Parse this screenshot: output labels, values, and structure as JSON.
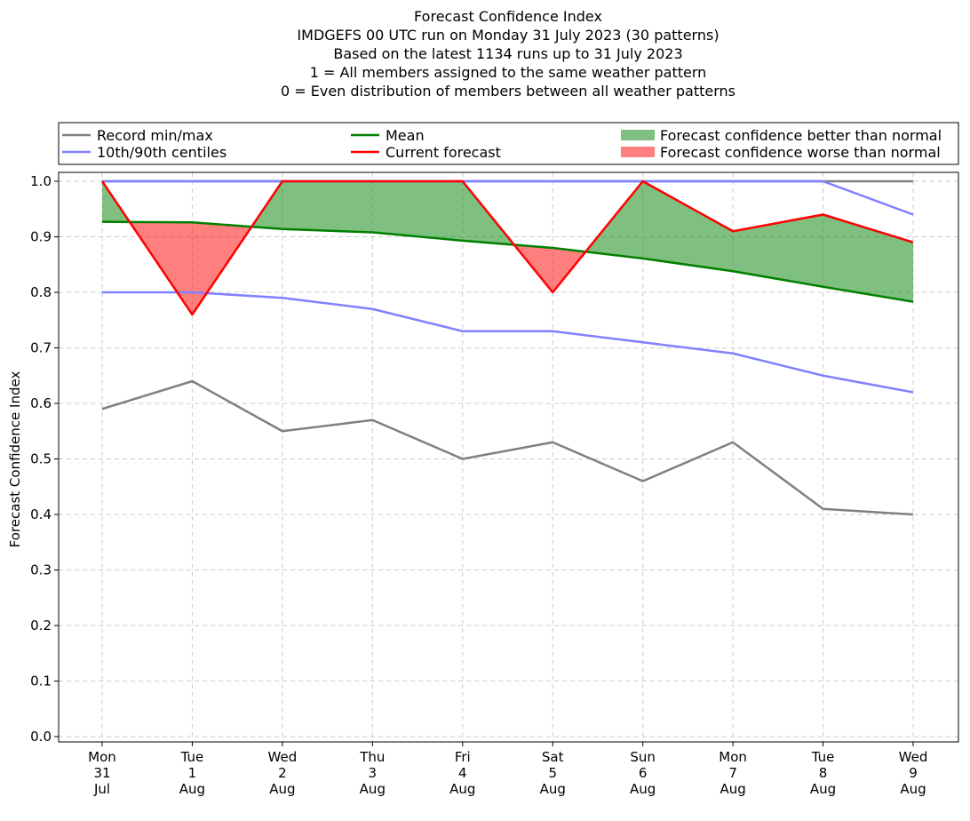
{
  "chart_data": {
    "type": "line",
    "title_lines": [
      "Forecast Confidence Index",
      "IMDGEFS 00 UTC run on Monday 31 July 2023 (30 patterns)",
      "Based on the latest 1134 runs up to 31 July 2023",
      "1 = All members assigned to the same weather pattern",
      "0 = Even distribution of members between all weather patterns"
    ],
    "ylabel": "Forecast Confidence Index",
    "ylim": [
      0.0,
      1.0
    ],
    "yticks": [
      "0.0",
      "0.1",
      "0.2",
      "0.3",
      "0.4",
      "0.5",
      "0.6",
      "0.7",
      "0.8",
      "0.9",
      "1.0"
    ],
    "grid": true,
    "legend_position": "top, above plot, three columns",
    "categories": [
      [
        "Mon",
        "31",
        "Jul"
      ],
      [
        "Tue",
        "1",
        "Aug"
      ],
      [
        "Wed",
        "2",
        "Aug"
      ],
      [
        "Thu",
        "3",
        "Aug"
      ],
      [
        "Fri",
        "4",
        "Aug"
      ],
      [
        "Sat",
        "5",
        "Aug"
      ],
      [
        "Sun",
        "6",
        "Aug"
      ],
      [
        "Mon",
        "7",
        "Aug"
      ],
      [
        "Tue",
        "8",
        "Aug"
      ],
      [
        "Wed",
        "9",
        "Aug"
      ]
    ],
    "series": [
      {
        "name": "Record max",
        "role": "record_max",
        "color": "#808080",
        "values": [
          1.0,
          1.0,
          1.0,
          1.0,
          1.0,
          1.0,
          1.0,
          1.0,
          1.0,
          1.0
        ]
      },
      {
        "name": "Record min",
        "role": "record_min",
        "color": "#808080",
        "values": [
          0.59,
          0.64,
          0.55,
          0.57,
          0.5,
          0.53,
          0.46,
          0.53,
          0.41,
          0.4
        ]
      },
      {
        "name": "90th centile",
        "role": "p90",
        "color": "#8080ff",
        "values": [
          1.0,
          1.0,
          1.0,
          1.0,
          1.0,
          1.0,
          1.0,
          1.0,
          1.0,
          0.94
        ]
      },
      {
        "name": "10th centile",
        "role": "p10",
        "color": "#8080ff",
        "values": [
          0.8,
          0.8,
          0.79,
          0.77,
          0.73,
          0.73,
          0.71,
          0.69,
          0.65,
          0.62
        ]
      },
      {
        "name": "Mean",
        "role": "mean",
        "color": "#008000",
        "values": [
          0.927,
          0.926,
          0.914,
          0.908,
          0.893,
          0.88,
          0.861,
          0.838,
          0.81,
          0.783
        ]
      },
      {
        "name": "Current forecast",
        "role": "current",
        "color": "#ff0000",
        "values": [
          1.0,
          0.76,
          1.0,
          1.0,
          1.0,
          0.8,
          1.0,
          0.91,
          0.94,
          0.89
        ]
      }
    ],
    "fills": {
      "better": {
        "color": "#008000",
        "opacity": 0.5
      },
      "worse": {
        "color": "#ff0000",
        "opacity": 0.5
      }
    },
    "legend": [
      {
        "label": "Record min/max",
        "kind": "line",
        "color": "#808080"
      },
      {
        "label": "10th/90th centiles",
        "kind": "line",
        "color": "#8080ff"
      },
      {
        "label": "Mean",
        "kind": "line",
        "color": "#008000"
      },
      {
        "label": "Current forecast",
        "kind": "line",
        "color": "#ff0000"
      },
      {
        "label": "Forecast confidence better than normal",
        "kind": "patch",
        "color": "#7fbf7f"
      },
      {
        "label": "Forecast confidence worse than normal",
        "kind": "patch",
        "color": "#ff7f7f"
      }
    ]
  }
}
